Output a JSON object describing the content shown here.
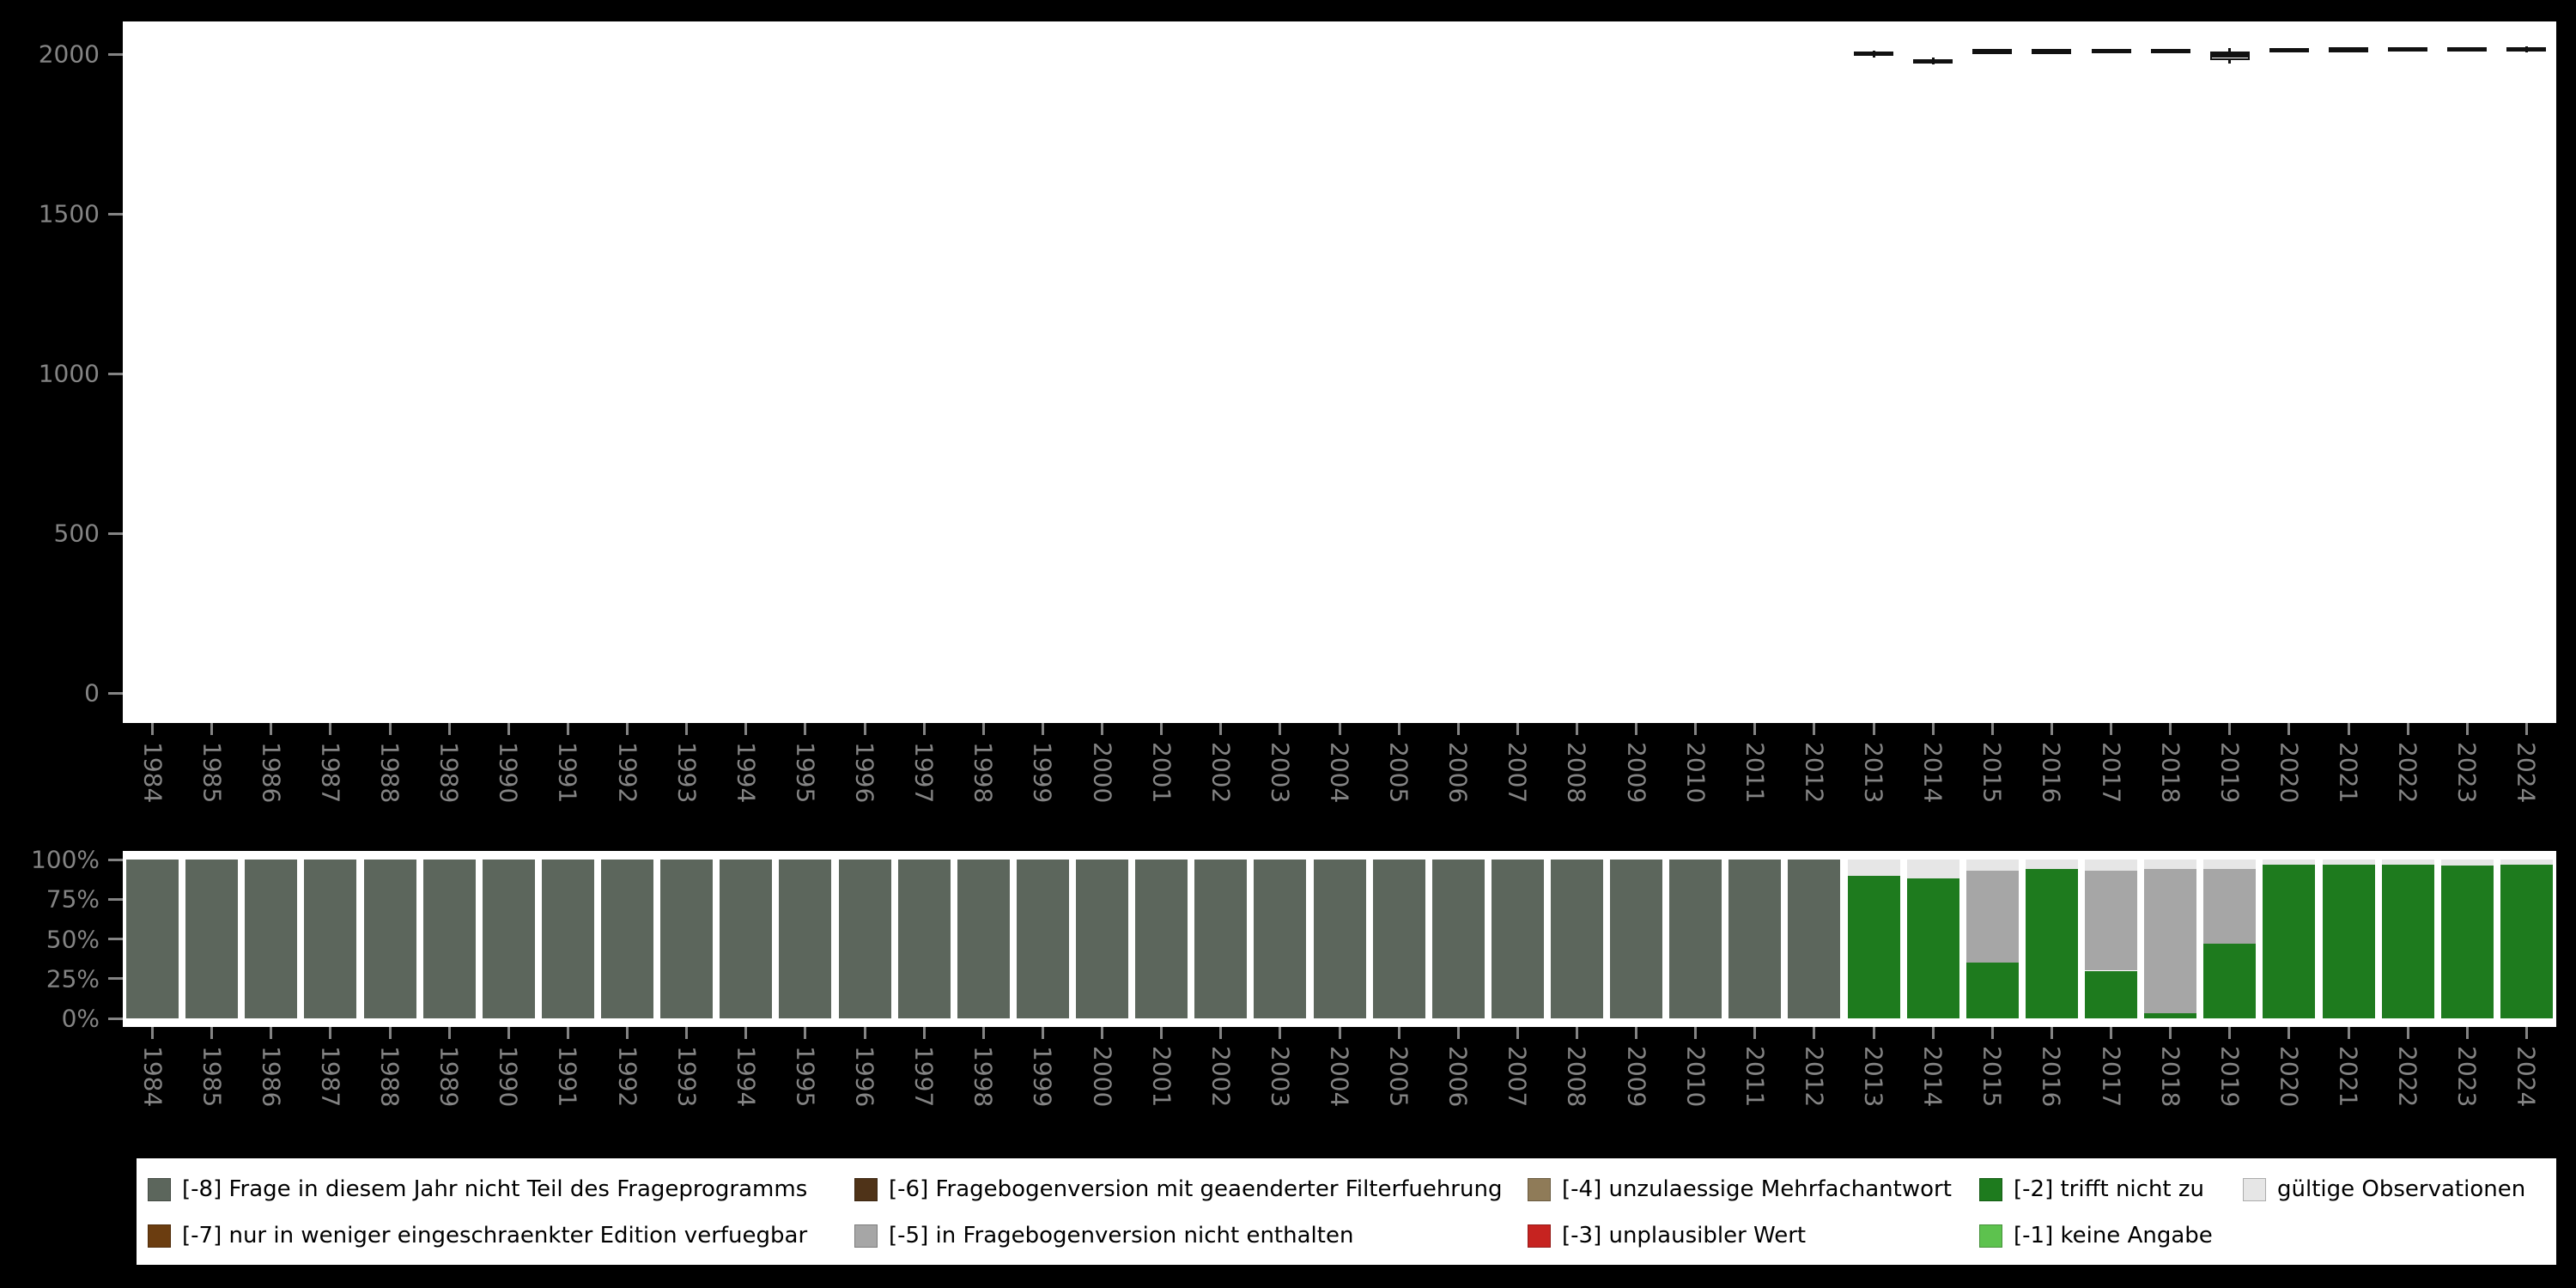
{
  "axes": {
    "top_yticks": [
      "0",
      "500",
      "1000",
      "1500",
      "2000"
    ],
    "bottom_yticks": [
      "0%",
      "25%",
      "50%",
      "75%",
      "100%"
    ]
  },
  "colors": {
    "background": "#000000",
    "plot_background": "#ffffff",
    "axis_text": "#848484",
    "boxplot_mark": "#111111"
  },
  "legend": {
    "keys": {
      "-8": {
        "label": "[-8] Frage in diesem Jahr nicht Teil des Frageprogramms",
        "color": "#5c665c"
      },
      "-7": {
        "label": "[-7] nur in weniger eingeschraenkter Edition verfuegbar",
        "color": "#6b3d10"
      },
      "-6": {
        "label": "[-6] Fragebogenversion mit geaenderter Filterfuehrung",
        "color": "#4f3318"
      },
      "-5": {
        "label": "[-5] in Fragebogenversion nicht enthalten",
        "color": "#a6a6a6"
      },
      "-4": {
        "label": "[-4] unzulaessige Mehrfachantwort",
        "color": "#8f7b58"
      },
      "-3": {
        "label": "[-3] unplausibler Wert",
        "color": "#c62320"
      },
      "-2": {
        "label": "[-2] trifft nicht zu",
        "color": "#1e7b1e"
      },
      "-1": {
        "label": "[-1] keine Angabe",
        "color": "#5dc24e"
      },
      "valid": {
        "label": "gültige Observationen",
        "color": "#e6e6e6"
      }
    },
    "row1": [
      "-8",
      "-6",
      "-4",
      "-2",
      "valid"
    ],
    "row2": [
      "-7",
      "-5",
      "-3",
      "-1"
    ]
  },
  "chart_data": [
    {
      "type": "boxplot",
      "title": "",
      "xlabel": "",
      "ylabel": "",
      "ylim": [
        0,
        2100
      ],
      "yticks": [
        0,
        500,
        1000,
        1500,
        2000
      ],
      "x_categories": [
        "1984",
        "1985",
        "1986",
        "1987",
        "1988",
        "1989",
        "1990",
        "1991",
        "1992",
        "1993",
        "1994",
        "1995",
        "1996",
        "1997",
        "1998",
        "1999",
        "2000",
        "2001",
        "2002",
        "2003",
        "2004",
        "2005",
        "2006",
        "2007",
        "2008",
        "2009",
        "2010",
        "2011",
        "2012",
        "2013",
        "2014",
        "2015",
        "2016",
        "2017",
        "2018",
        "2019",
        "2020",
        "2021",
        "2022",
        "2023",
        "2024"
      ],
      "note": "valid observations exist only for 2013-2024; small boxplots near value 2000",
      "boxes": [
        {
          "year": "2013",
          "low": 1990,
          "q1": 1997,
          "median": 2001,
          "q3": 2005,
          "high": 2010
        },
        {
          "year": "2014",
          "low": 1968,
          "q1": 1972,
          "median": 1977,
          "q3": 1983,
          "high": 1990
        },
        {
          "year": "2015",
          "low": 2000,
          "q1": 2005,
          "median": 2009,
          "q3": 2012,
          "high": 2015
        },
        {
          "year": "2016",
          "low": 2001,
          "q1": 2005,
          "median": 2009,
          "q3": 2012,
          "high": 2016
        },
        {
          "year": "2017",
          "low": 2002,
          "q1": 2006,
          "median": 2010,
          "q3": 2013,
          "high": 2017
        },
        {
          "year": "2018",
          "low": 2003,
          "q1": 2007,
          "median": 2010,
          "q3": 2013,
          "high": 2017
        },
        {
          "year": "2019",
          "low": 1970,
          "q1": 1980,
          "median": 1997,
          "q3": 2008,
          "high": 2018
        },
        {
          "year": "2020",
          "low": 2006,
          "q1": 2010,
          "median": 2013,
          "q3": 2016,
          "high": 2019
        },
        {
          "year": "2021",
          "low": 2007,
          "q1": 2011,
          "median": 2014,
          "q3": 2017,
          "high": 2020
        },
        {
          "year": "2022",
          "low": 2008,
          "q1": 2012,
          "median": 2015,
          "q3": 2018,
          "high": 2021
        },
        {
          "year": "2023",
          "low": 2009,
          "q1": 2013,
          "median": 2016,
          "q3": 2019,
          "high": 2022
        },
        {
          "year": "2024",
          "low": 2005,
          "q1": 2012,
          "median": 2016,
          "q3": 2019,
          "high": 2023
        }
      ]
    },
    {
      "type": "bar",
      "stacked": true,
      "unit": "percent",
      "title": "",
      "xlabel": "",
      "ylabel": "",
      "yticks_percent": [
        "0%",
        "25%",
        "50%",
        "75%",
        "100%"
      ],
      "x_categories": [
        "1984",
        "1985",
        "1986",
        "1987",
        "1988",
        "1989",
        "1990",
        "1991",
        "1992",
        "1993",
        "1994",
        "1995",
        "1996",
        "1997",
        "1998",
        "1999",
        "2000",
        "2001",
        "2002",
        "2003",
        "2004",
        "2005",
        "2006",
        "2007",
        "2008",
        "2009",
        "2010",
        "2011",
        "2012",
        "2013",
        "2014",
        "2015",
        "2016",
        "2017",
        "2018",
        "2019",
        "2020",
        "2021",
        "2022",
        "2023",
        "2024"
      ],
      "bars": [
        {
          "year": "1984",
          "segments": [
            {
              "key": "-8",
              "pct": 100
            }
          ]
        },
        {
          "year": "1985",
          "segments": [
            {
              "key": "-8",
              "pct": 100
            }
          ]
        },
        {
          "year": "1986",
          "segments": [
            {
              "key": "-8",
              "pct": 100
            }
          ]
        },
        {
          "year": "1987",
          "segments": [
            {
              "key": "-8",
              "pct": 100
            }
          ]
        },
        {
          "year": "1988",
          "segments": [
            {
              "key": "-8",
              "pct": 100
            }
          ]
        },
        {
          "year": "1989",
          "segments": [
            {
              "key": "-8",
              "pct": 100
            }
          ]
        },
        {
          "year": "1990",
          "segments": [
            {
              "key": "-8",
              "pct": 100
            }
          ]
        },
        {
          "year": "1991",
          "segments": [
            {
              "key": "-8",
              "pct": 100
            }
          ]
        },
        {
          "year": "1992",
          "segments": [
            {
              "key": "-8",
              "pct": 100
            }
          ]
        },
        {
          "year": "1993",
          "segments": [
            {
              "key": "-8",
              "pct": 100
            }
          ]
        },
        {
          "year": "1994",
          "segments": [
            {
              "key": "-8",
              "pct": 100
            }
          ]
        },
        {
          "year": "1995",
          "segments": [
            {
              "key": "-8",
              "pct": 100
            }
          ]
        },
        {
          "year": "1996",
          "segments": [
            {
              "key": "-8",
              "pct": 100
            }
          ]
        },
        {
          "year": "1997",
          "segments": [
            {
              "key": "-8",
              "pct": 100
            }
          ]
        },
        {
          "year": "1998",
          "segments": [
            {
              "key": "-8",
              "pct": 100
            }
          ]
        },
        {
          "year": "1999",
          "segments": [
            {
              "key": "-8",
              "pct": 100
            }
          ]
        },
        {
          "year": "2000",
          "segments": [
            {
              "key": "-8",
              "pct": 100
            }
          ]
        },
        {
          "year": "2001",
          "segments": [
            {
              "key": "-8",
              "pct": 100
            }
          ]
        },
        {
          "year": "2002",
          "segments": [
            {
              "key": "-8",
              "pct": 100
            }
          ]
        },
        {
          "year": "2003",
          "segments": [
            {
              "key": "-8",
              "pct": 100
            }
          ]
        },
        {
          "year": "2004",
          "segments": [
            {
              "key": "-8",
              "pct": 100
            }
          ]
        },
        {
          "year": "2005",
          "segments": [
            {
              "key": "-8",
              "pct": 100
            }
          ]
        },
        {
          "year": "2006",
          "segments": [
            {
              "key": "-8",
              "pct": 100
            }
          ]
        },
        {
          "year": "2007",
          "segments": [
            {
              "key": "-8",
              "pct": 100
            }
          ]
        },
        {
          "year": "2008",
          "segments": [
            {
              "key": "-8",
              "pct": 100
            }
          ]
        },
        {
          "year": "2009",
          "segments": [
            {
              "key": "-8",
              "pct": 100
            }
          ]
        },
        {
          "year": "2010",
          "segments": [
            {
              "key": "-8",
              "pct": 100
            }
          ]
        },
        {
          "year": "2011",
          "segments": [
            {
              "key": "-8",
              "pct": 100
            }
          ]
        },
        {
          "year": "2012",
          "segments": [
            {
              "key": "-8",
              "pct": 100
            }
          ]
        },
        {
          "year": "2013",
          "segments": [
            {
              "key": "-2",
              "pct": 90
            },
            {
              "key": "valid",
              "pct": 10
            }
          ]
        },
        {
          "year": "2014",
          "segments": [
            {
              "key": "-2",
              "pct": 88
            },
            {
              "key": "valid",
              "pct": 12
            }
          ]
        },
        {
          "year": "2015",
          "segments": [
            {
              "key": "-2",
              "pct": 35
            },
            {
              "key": "-5",
              "pct": 58
            },
            {
              "key": "valid",
              "pct": 7
            }
          ]
        },
        {
          "year": "2016",
          "segments": [
            {
              "key": "-2",
              "pct": 94
            },
            {
              "key": "valid",
              "pct": 6
            }
          ]
        },
        {
          "year": "2017",
          "segments": [
            {
              "key": "-2",
              "pct": 30
            },
            {
              "key": "-5",
              "pct": 63
            },
            {
              "key": "valid",
              "pct": 7
            }
          ]
        },
        {
          "year": "2018",
          "segments": [
            {
              "key": "-2",
              "pct": 3
            },
            {
              "key": "-5",
              "pct": 91
            },
            {
              "key": "valid",
              "pct": 6
            }
          ]
        },
        {
          "year": "2019",
          "segments": [
            {
              "key": "-2",
              "pct": 47
            },
            {
              "key": "-5",
              "pct": 47
            },
            {
              "key": "valid",
              "pct": 6
            }
          ]
        },
        {
          "year": "2020",
          "segments": [
            {
              "key": "-2",
              "pct": 97
            },
            {
              "key": "valid",
              "pct": 3
            }
          ]
        },
        {
          "year": "2021",
          "segments": [
            {
              "key": "-2",
              "pct": 97
            },
            {
              "key": "valid",
              "pct": 3
            }
          ]
        },
        {
          "year": "2022",
          "segments": [
            {
              "key": "-2",
              "pct": 97
            },
            {
              "key": "valid",
              "pct": 3
            }
          ]
        },
        {
          "year": "2023",
          "segments": [
            {
              "key": "-2",
              "pct": 96
            },
            {
              "key": "valid",
              "pct": 4
            }
          ]
        },
        {
          "year": "2024",
          "segments": [
            {
              "key": "-2",
              "pct": 97
            },
            {
              "key": "valid",
              "pct": 3
            }
          ]
        }
      ]
    }
  ]
}
